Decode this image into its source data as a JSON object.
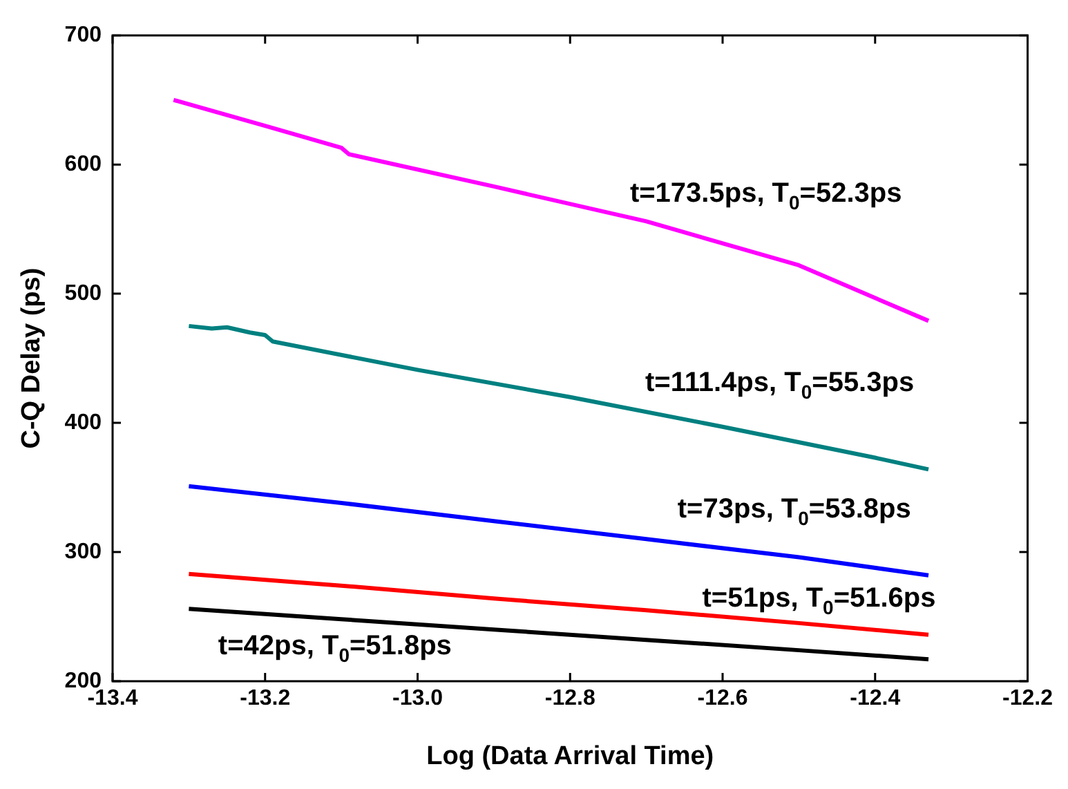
{
  "chart_data": {
    "type": "line",
    "xlabel": "Log (Data Arrival Time)",
    "ylabel": "C-Q Delay (ps)",
    "xlim": [
      -13.4,
      -12.2
    ],
    "xticks": [
      -13.4,
      -13.2,
      {
        "value": -13,
        "label": "-13.0"
      },
      -12.8,
      -12.6,
      -12.4,
      -12.2
    ],
    "ylim": [
      200,
      700
    ],
    "yticks": [
      200,
      300,
      400,
      500,
      600,
      700
    ],
    "grid": false,
    "legend": false,
    "marker": "none",
    "line_style": "solid",
    "series": [
      {
        "color": "#ff00ff",
        "x": [
          -13.32,
          -13.2,
          -13.1,
          -13.09,
          -12.9,
          -12.7,
          -12.5,
          -12.33
        ],
        "values": [
          650,
          630,
          613,
          608,
          583,
          556,
          522,
          479
        ]
      },
      {
        "color": "#008080",
        "x": [
          -13.3,
          -13.27,
          -13.25,
          -13.22,
          -13.2,
          -13.19,
          -13.0,
          -12.8,
          -12.6,
          -12.4,
          -12.33
        ],
        "values": [
          475,
          473,
          474,
          470,
          468,
          463,
          441,
          420,
          397,
          373,
          364
        ]
      },
      {
        "color": "#0000ff",
        "x": [
          -13.3,
          -13.1,
          -12.9,
          -12.7,
          -12.5,
          -12.33
        ],
        "values": [
          351,
          338,
          324,
          310,
          296,
          282
        ]
      },
      {
        "color": "#ff0000",
        "x": [
          -13.3,
          -13.1,
          -12.9,
          -12.7,
          -12.5,
          -12.33
        ],
        "values": [
          283,
          274,
          264,
          255,
          245,
          236
        ]
      },
      {
        "color": "#000000",
        "x": [
          -13.3,
          -13.1,
          -12.9,
          -12.7,
          -12.5,
          -12.33
        ],
        "values": [
          256,
          248,
          240,
          232,
          224,
          217
        ]
      }
    ],
    "annotations": [
      "t=173.5ps, T$_{0}$=52.3ps",
      "t=111.4ps, T$_{0}$=55.3ps",
      "t=73ps, T$_{0}$=53.8ps",
      "t=51ps, T$_{0}$=51.6ps",
      "t=42ps, T$_{0}$=51.8ps"
    ]
  }
}
